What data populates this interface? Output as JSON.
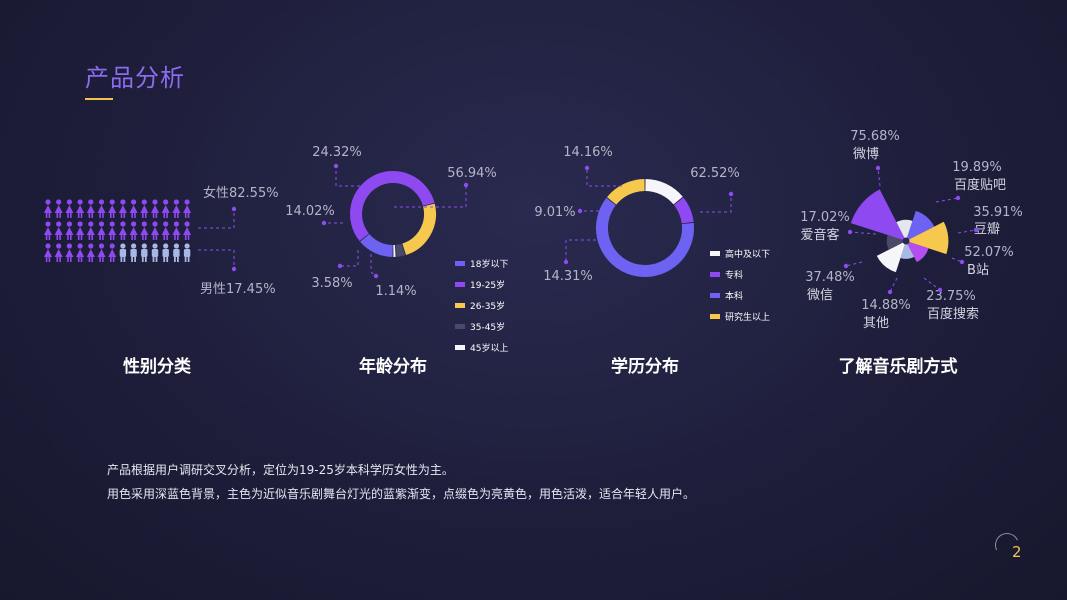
{
  "page": {
    "title": "产品分析",
    "page_number": "2",
    "description_lines": [
      "产品根据用户调研交叉分析，定位为19-25岁本科学历女性为主。",
      "用色采用深蓝色背景，主色为近似音乐剧舞台灯光的蓝紫渐变，点缀色为亮黄色，用色活泼，适合年轻人用户。"
    ]
  },
  "colors": {
    "violet": "#8e4af0",
    "blue_purple": "#6e62f2",
    "yellow": "#f6c84d",
    "dark": "#4a4a68",
    "white": "#f5f5fa",
    "light_blue": "#a8b8e6",
    "label_gray": "#b4b4c8",
    "leader": "#8a4ef0"
  },
  "chart_data": [
    {
      "type": "pictogram",
      "section_title": "性别分类",
      "series": [
        {
          "name": "女性",
          "percent": 82.55,
          "label": "女性82.55%"
        },
        {
          "name": "男性",
          "percent": 17.45,
          "label": "男性17.45%"
        }
      ]
    },
    {
      "type": "donut",
      "section_title": "年龄分布",
      "slices": [
        {
          "name": "18岁以下",
          "value": 14.02,
          "label": "14.02%",
          "color": "#6e62f2"
        },
        {
          "name": "19-25岁",
          "value": 56.94,
          "label": "56.94%",
          "color": "#8e4af0"
        },
        {
          "name": "26-35岁",
          "value": 24.32,
          "label": "24.32%",
          "color": "#f6c84d"
        },
        {
          "name": "35-45岁",
          "value": 3.58,
          "label": "3.58%",
          "color": "#4a4a68"
        },
        {
          "name": "45岁以上",
          "value": 1.14,
          "label": "1.14%",
          "color": "#f5f5fa"
        }
      ],
      "legend": [
        "18岁以下",
        "19-25岁",
        "26-35岁",
        "35-45岁",
        "45岁以上"
      ]
    },
    {
      "type": "donut",
      "section_title": "学历分布",
      "slices": [
        {
          "name": "高中及以下",
          "value": 14.16,
          "label": "14.16%",
          "color": "#f5f5fa"
        },
        {
          "name": "专科",
          "value": 9.01,
          "label": "9.01%",
          "color": "#8e4af0"
        },
        {
          "name": "本科",
          "value": 62.52,
          "label": "62.52%",
          "color": "#6e62f2"
        },
        {
          "name": "研究生以上",
          "value": 14.31,
          "label": "14.31%",
          "color": "#f6c84d"
        }
      ],
      "legend": [
        "高中及以下",
        "专科",
        "本科",
        "研究生以上"
      ]
    },
    {
      "type": "rose",
      "section_title": "了解音乐剧方式",
      "slices": [
        {
          "name": "微博",
          "value": 75.68,
          "label": "75.68%",
          "color": "#8e4af0"
        },
        {
          "name": "贴吧",
          "value": 19.89,
          "label": "19.89%",
          "color": "#e6e6ee"
        },
        {
          "name": "豆瓣",
          "value": 35.91,
          "label": "35.91%",
          "color": "#6e62f2"
        },
        {
          "name": "B站",
          "value": 52.07,
          "label": "52.07%",
          "color": "#f6c84d"
        },
        {
          "name": "百度搜索",
          "value": 23.75,
          "label": "23.75%",
          "color": "#b44ef0"
        },
        {
          "name": "其他",
          "value": 14.88,
          "label": "14.88%",
          "color": "#a8b8e6"
        },
        {
          "name": "微信",
          "value": 37.48,
          "label": "37.48%",
          "color": "#f5f5fa"
        },
        {
          "name": "爱音客",
          "value": 17.02,
          "label": "17.02%",
          "color": "#4a4a68"
        }
      ],
      "labels": [
        {
          "percent": "75.68%",
          "name": "微博"
        },
        {
          "percent": "19.89%",
          "name": "百度贴吧"
        },
        {
          "percent": "35.91%",
          "name": "豆瓣"
        },
        {
          "percent": "52.07%",
          "name": "B站"
        },
        {
          "percent": "23.75%",
          "name": "百度搜索"
        },
        {
          "percent": "14.88%",
          "name": "其他"
        },
        {
          "percent": "37.48%",
          "name": "微信"
        },
        {
          "percent": "17.02%",
          "name": "爱音客"
        }
      ]
    }
  ]
}
